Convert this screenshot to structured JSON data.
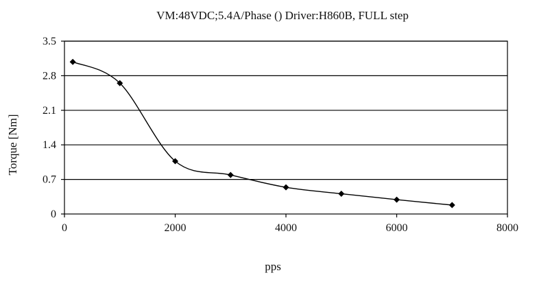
{
  "chart_data": {
    "type": "line",
    "title": "VM:48VDC;5.4A/Phase ()  Driver:H860B, FULL step",
    "xlabel": "pps",
    "ylabel": "Torque  [Nm]",
    "xlim": [
      0,
      8000
    ],
    "ylim": [
      0,
      3.5
    ],
    "x_ticks": [
      "0",
      "2000",
      "4000",
      "6000",
      "8000"
    ],
    "y_ticks": [
      "0",
      "0.7",
      "1.4",
      "2.1",
      "2.8",
      "3.5"
    ],
    "grid": "horizontal",
    "series": [
      {
        "x": [
          150,
          1000,
          2000,
          3000,
          4000,
          5000,
          6000,
          7000
        ],
        "y": [
          3.08,
          2.65,
          1.07,
          0.79,
          0.54,
          0.41,
          0.29,
          0.18
        ]
      }
    ],
    "colors": {
      "line": "#000000",
      "marker": "#000000",
      "grid": "#000000"
    }
  }
}
